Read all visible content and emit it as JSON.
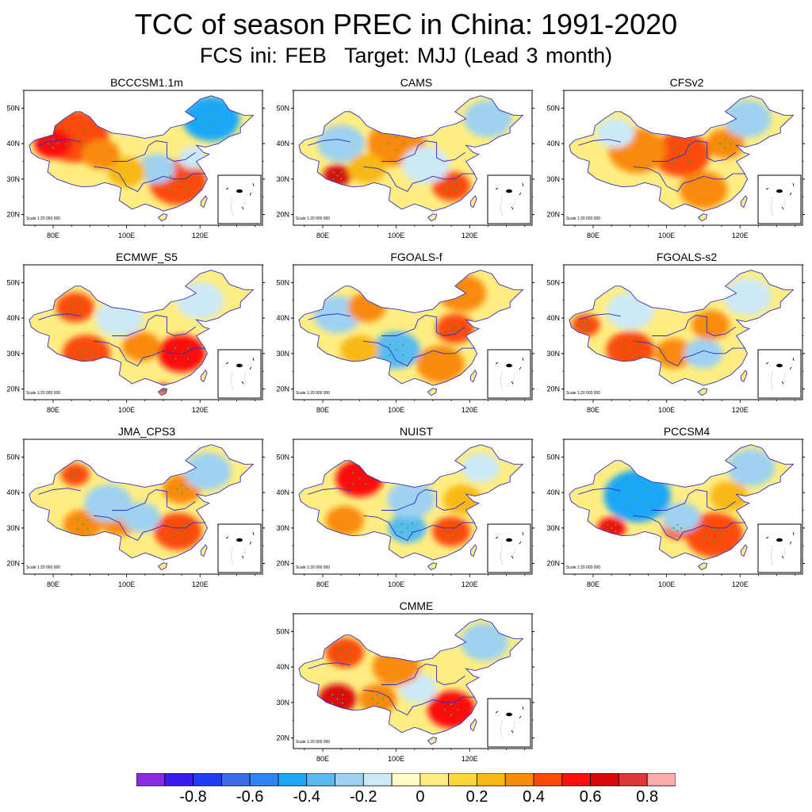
{
  "header": {
    "title": "TCC of season PREC in China: 1991-2020",
    "subtitle_init": "FCS ini: FEB",
    "subtitle_target": "Target: MJJ (Lead 3 month)"
  },
  "map_axes": {
    "lat_ticks": [
      "20N",
      "30N",
      "40N",
      "50N"
    ],
    "lon_ticks": [
      "80E",
      "100E",
      "120E"
    ],
    "scale_text": "Scale 1:20 000 000"
  },
  "panels": [
    {
      "name": "BCCCSM1.1m",
      "blobs": [
        {
          "lon": 86,
          "lat": 42,
          "r": 7,
          "v": 0.4
        },
        {
          "lon": 80,
          "lat": 40,
          "r": 4,
          "v": 0.5
        },
        {
          "lon": 114,
          "lat": 29,
          "r": 6,
          "v": 0.4
        },
        {
          "lon": 123,
          "lat": 47,
          "r": 6,
          "v": -0.5
        },
        {
          "lon": 108,
          "lat": 33,
          "r": 4,
          "v": -0.3
        },
        {
          "lon": 100,
          "lat": 32,
          "r": 4,
          "v": 0.2
        },
        {
          "lon": 93,
          "lat": 37,
          "r": 4,
          "v": 0.3
        },
        {
          "lon": 118,
          "lat": 36,
          "r": 3,
          "v": -0.2
        }
      ]
    },
    {
      "name": "CAMS",
      "blobs": [
        {
          "lon": 84,
          "lat": 31,
          "r": 3,
          "v": 0.65
        },
        {
          "lon": 100,
          "lat": 40,
          "r": 6,
          "v": 0.35
        },
        {
          "lon": 115,
          "lat": 28,
          "r": 4,
          "v": 0.4
        },
        {
          "lon": 85,
          "lat": 40,
          "r": 5,
          "v": -0.3
        },
        {
          "lon": 108,
          "lat": 34,
          "r": 5,
          "v": -0.2
        },
        {
          "lon": 125,
          "lat": 47,
          "r": 5,
          "v": -0.3
        },
        {
          "lon": 92,
          "lat": 33,
          "r": 4,
          "v": 0.25
        }
      ]
    },
    {
      "name": "CFSv2",
      "blobs": [
        {
          "lon": 104,
          "lat": 37,
          "r": 6,
          "v": 0.4
        },
        {
          "lon": 92,
          "lat": 38,
          "r": 6,
          "v": 0.3
        },
        {
          "lon": 116,
          "lat": 40,
          "r": 4,
          "v": 0.35
        },
        {
          "lon": 110,
          "lat": 27,
          "r": 5,
          "v": 0.3
        },
        {
          "lon": 122,
          "lat": 47,
          "r": 5,
          "v": -0.3
        },
        {
          "lon": 86,
          "lat": 43,
          "r": 4,
          "v": -0.2
        }
      ]
    },
    {
      "name": "ECMWF_S5",
      "blobs": [
        {
          "lon": 115,
          "lat": 30,
          "r": 5,
          "v": 0.5
        },
        {
          "lon": 89,
          "lat": 30,
          "r": 5,
          "v": 0.4
        },
        {
          "lon": 86,
          "lat": 43,
          "r": 4,
          "v": 0.45
        },
        {
          "lon": 104,
          "lat": 32,
          "r": 4,
          "v": 0.3
        },
        {
          "lon": 110,
          "lat": 20,
          "r": 1.5,
          "v": 0.7
        },
        {
          "lon": 98,
          "lat": 40,
          "r": 5,
          "v": -0.2
        },
        {
          "lon": 120,
          "lat": 45,
          "r": 5,
          "v": -0.15
        }
      ]
    },
    {
      "name": "FGOALS-f",
      "blobs": [
        {
          "lon": 100,
          "lat": 31,
          "r": 5,
          "v": -0.35
        },
        {
          "lon": 84,
          "lat": 41,
          "r": 5,
          "v": -0.3
        },
        {
          "lon": 116,
          "lat": 37,
          "r": 4,
          "v": 0.4
        },
        {
          "lon": 112,
          "lat": 27,
          "r": 5,
          "v": 0.3
        },
        {
          "lon": 92,
          "lat": 43,
          "r": 4,
          "v": 0.3
        },
        {
          "lon": 118,
          "lat": 47,
          "r": 5,
          "v": 0.3
        },
        {
          "lon": 90,
          "lat": 31,
          "r": 4,
          "v": 0.25
        }
      ]
    },
    {
      "name": "FGOALS-s2",
      "blobs": [
        {
          "lon": 90,
          "lat": 31,
          "r": 5,
          "v": 0.4
        },
        {
          "lon": 78,
          "lat": 38,
          "r": 3,
          "v": 0.4
        },
        {
          "lon": 102,
          "lat": 30,
          "r": 4,
          "v": 0.3
        },
        {
          "lon": 112,
          "lat": 38,
          "r": 4,
          "v": 0.3
        },
        {
          "lon": 110,
          "lat": 30,
          "r": 4,
          "v": -0.3
        },
        {
          "lon": 90,
          "lat": 42,
          "r": 5,
          "v": -0.2
        },
        {
          "lon": 122,
          "lat": 46,
          "r": 5,
          "v": -0.2
        }
      ]
    },
    {
      "name": "JMA_CPS3",
      "blobs": [
        {
          "lon": 114,
          "lat": 29,
          "r": 5,
          "v": 0.4
        },
        {
          "lon": 86,
          "lat": 45,
          "r": 3,
          "v": 0.45
        },
        {
          "lon": 88,
          "lat": 31,
          "r": 4,
          "v": 0.35
        },
        {
          "lon": 98,
          "lat": 32,
          "r": 4,
          "v": 0.3
        },
        {
          "lon": 115,
          "lat": 41,
          "r": 4,
          "v": 0.35
        },
        {
          "lon": 95,
          "lat": 37,
          "r": 5,
          "v": -0.3
        },
        {
          "lon": 104,
          "lat": 33,
          "r": 4,
          "v": -0.3
        },
        {
          "lon": 122,
          "lat": 46,
          "r": 5,
          "v": -0.25
        }
      ]
    },
    {
      "name": "NUIST",
      "blobs": [
        {
          "lon": 90,
          "lat": 44,
          "r": 5,
          "v": 0.5
        },
        {
          "lon": 115,
          "lat": 29,
          "r": 4,
          "v": 0.45
        },
        {
          "lon": 86,
          "lat": 32,
          "r": 4,
          "v": 0.3
        },
        {
          "lon": 103,
          "lat": 30,
          "r": 4,
          "v": -0.35
        },
        {
          "lon": 104,
          "lat": 38,
          "r": 5,
          "v": -0.25
        },
        {
          "lon": 118,
          "lat": 38,
          "r": 4,
          "v": 0.2
        },
        {
          "lon": 123,
          "lat": 47,
          "r": 4,
          "v": -0.2
        }
      ]
    },
    {
      "name": "PCCSM4",
      "blobs": [
        {
          "lon": 92,
          "lat": 39,
          "r": 7,
          "v": -0.45
        },
        {
          "lon": 113,
          "lat": 28,
          "r": 6,
          "v": 0.45
        },
        {
          "lon": 85,
          "lat": 30,
          "r": 3,
          "v": 0.55
        },
        {
          "lon": 103,
          "lat": 30,
          "r": 3,
          "v": 0.4
        },
        {
          "lon": 104,
          "lat": 33,
          "r": 4,
          "v": -0.3
        },
        {
          "lon": 123,
          "lat": 47,
          "r": 5,
          "v": -0.3
        },
        {
          "lon": 117,
          "lat": 39,
          "r": 4,
          "v": 0.2
        }
      ]
    },
    {
      "name": "CMME",
      "blobs": [
        {
          "lon": 84,
          "lat": 31,
          "r": 4,
          "v": 0.6
        },
        {
          "lon": 115,
          "lat": 28,
          "r": 5,
          "v": 0.5
        },
        {
          "lon": 86,
          "lat": 44,
          "r": 4,
          "v": 0.45
        },
        {
          "lon": 95,
          "lat": 31,
          "r": 4,
          "v": 0.35
        },
        {
          "lon": 106,
          "lat": 34,
          "r": 4,
          "v": -0.2
        },
        {
          "lon": 124,
          "lat": 47,
          "r": 5,
          "v": -0.3
        },
        {
          "lon": 100,
          "lat": 40,
          "r": 5,
          "v": 0.3
        }
      ]
    }
  ],
  "colorbar": {
    "colors": [
      "#8a2be2",
      "#3b1cf0",
      "#1f3ef5",
      "#3d6be8",
      "#2f86f2",
      "#1ea7f5",
      "#59bbf0",
      "#9ed2f0",
      "#cde9f7",
      "#fefec8",
      "#feee82",
      "#fbd63c",
      "#f8b816",
      "#fa8a0c",
      "#fa4c08",
      "#fb0f0f",
      "#d90808",
      "#db3838",
      "#fcaeae"
    ],
    "labels": [
      "-0.8",
      "-0.6",
      "-0.4",
      "-0.2",
      "0",
      "0.2",
      "0.4",
      "0.6",
      "0.8"
    ]
  },
  "chart_data": {
    "type": "heatmap",
    "title": "TCC of season PREC in China: 1991-2020",
    "subtitle": "FCS ini: FEB    Target: MJJ (Lead 3 month)",
    "panels": [
      "BCCCSM1.1m",
      "CAMS",
      "CFSv2",
      "ECMWF_S5",
      "FGOALS-f",
      "FGOALS-s2",
      "JMA_CPS3",
      "NUIST",
      "PCCSM4",
      "CMME"
    ],
    "xlim": [
      72,
      137
    ],
    "ylim": [
      17,
      55
    ],
    "xticks": [
      80,
      100,
      120
    ],
    "yticks": [
      20,
      30,
      40,
      50
    ],
    "colorbar_levels": [
      -0.9,
      -0.8,
      -0.7,
      -0.6,
      -0.5,
      -0.4,
      -0.3,
      -0.2,
      -0.1,
      0,
      0.1,
      0.2,
      0.3,
      0.4,
      0.5,
      0.6,
      0.7,
      0.8,
      0.9
    ],
    "significance_marker": "green dots",
    "xlabel": "",
    "ylabel": ""
  }
}
